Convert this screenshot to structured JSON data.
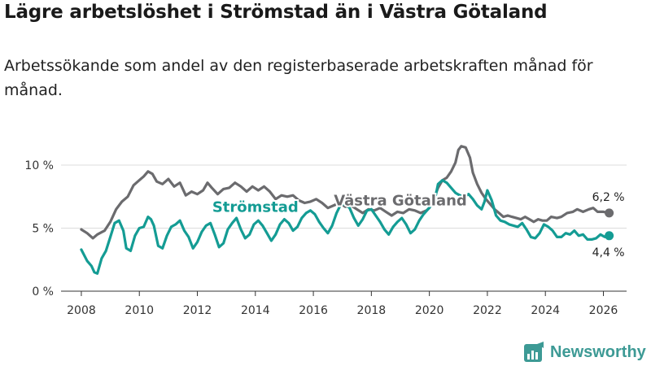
{
  "title": "Lägre arbetslöshet i Strömstad än i Västra Götaland",
  "subtitle": "Arbetssökande som andel av den registerbaserade arbetskraften månad för månad.",
  "brand": {
    "name": "Newsworthy"
  },
  "chart_data": {
    "type": "line",
    "title": "Lägre arbetslöshet i Strömstad än i Västra Götaland",
    "xlabel": "",
    "ylabel": "",
    "xlim": [
      2007.3,
      2026.8
    ],
    "ylim": [
      0,
      12
    ],
    "yticks": [
      0,
      5,
      10
    ],
    "ytick_labels": [
      "0 %",
      "5 %",
      "10 %"
    ],
    "xticks": [
      2008,
      2010,
      2012,
      2014,
      2016,
      2018,
      2020,
      2022,
      2024,
      2026
    ],
    "xtick_labels": [
      "2008",
      "2010",
      "2012",
      "2014",
      "2016",
      "2018",
      "2020",
      "2022",
      "2024",
      "2026"
    ],
    "grid": true,
    "series": [
      {
        "name": "Västra Götaland",
        "color": "#6b6b6e",
        "end_label": "6,2 %",
        "points": [
          [
            2008.0,
            4.9
          ],
          [
            2008.2,
            4.6
          ],
          [
            2008.4,
            4.2
          ],
          [
            2008.55,
            4.5
          ],
          [
            2008.8,
            4.8
          ],
          [
            2009.0,
            5.5
          ],
          [
            2009.2,
            6.5
          ],
          [
            2009.4,
            7.1
          ],
          [
            2009.6,
            7.5
          ],
          [
            2009.8,
            8.4
          ],
          [
            2010.0,
            8.8
          ],
          [
            2010.15,
            9.1
          ],
          [
            2010.3,
            9.5
          ],
          [
            2010.45,
            9.3
          ],
          [
            2010.6,
            8.7
          ],
          [
            2010.8,
            8.5
          ],
          [
            2011.0,
            8.9
          ],
          [
            2011.2,
            8.3
          ],
          [
            2011.4,
            8.6
          ],
          [
            2011.6,
            7.6
          ],
          [
            2011.8,
            7.9
          ],
          [
            2012.0,
            7.7
          ],
          [
            2012.2,
            8.0
          ],
          [
            2012.35,
            8.6
          ],
          [
            2012.5,
            8.2
          ],
          [
            2012.7,
            7.7
          ],
          [
            2012.9,
            8.1
          ],
          [
            2013.1,
            8.2
          ],
          [
            2013.3,
            8.6
          ],
          [
            2013.5,
            8.3
          ],
          [
            2013.7,
            7.9
          ],
          [
            2013.9,
            8.3
          ],
          [
            2014.1,
            8.0
          ],
          [
            2014.3,
            8.3
          ],
          [
            2014.5,
            7.9
          ],
          [
            2014.7,
            7.3
          ],
          [
            2014.9,
            7.6
          ],
          [
            2015.1,
            7.5
          ],
          [
            2015.3,
            7.6
          ],
          [
            2015.5,
            7.2
          ],
          [
            2015.7,
            7.0
          ],
          [
            2015.9,
            7.1
          ],
          [
            2016.1,
            7.3
          ],
          [
            2016.3,
            7.0
          ],
          [
            2016.5,
            6.6
          ],
          [
            2016.7,
            6.8
          ],
          [
            2016.9,
            7.0
          ],
          [
            2017.1,
            6.7
          ],
          [
            2017.3,
            6.8
          ],
          [
            2017.5,
            6.5
          ],
          [
            2017.7,
            6.2
          ],
          [
            2017.9,
            6.5
          ],
          [
            2018.1,
            6.4
          ],
          [
            2018.3,
            6.6
          ],
          [
            2018.5,
            6.3
          ],
          [
            2018.7,
            6.0
          ],
          [
            2018.9,
            6.3
          ],
          [
            2019.1,
            6.2
          ],
          [
            2019.3,
            6.5
          ],
          [
            2019.5,
            6.4
          ],
          [
            2019.7,
            6.2
          ],
          [
            2019.9,
            6.4
          ],
          [
            2020.0,
            6.6
          ],
          [
            2020.15,
            7.3
          ],
          [
            2020.3,
            8.2
          ],
          [
            2020.45,
            8.8
          ],
          [
            2020.6,
            9.0
          ],
          [
            2020.75,
            9.5
          ],
          [
            2020.9,
            10.2
          ],
          [
            2021.0,
            11.2
          ],
          [
            2021.1,
            11.5
          ],
          [
            2021.25,
            11.4
          ],
          [
            2021.4,
            10.6
          ],
          [
            2021.5,
            9.4
          ],
          [
            2021.65,
            8.5
          ],
          [
            2021.8,
            7.8
          ],
          [
            2021.95,
            7.3
          ],
          [
            2022.1,
            6.9
          ],
          [
            2022.25,
            6.5
          ],
          [
            2022.4,
            6.2
          ],
          [
            2022.55,
            5.9
          ],
          [
            2022.7,
            6.0
          ],
          [
            2022.85,
            5.9
          ],
          [
            2023.0,
            5.8
          ],
          [
            2023.15,
            5.7
          ],
          [
            2023.3,
            5.9
          ],
          [
            2023.45,
            5.7
          ],
          [
            2023.6,
            5.5
          ],
          [
            2023.75,
            5.7
          ],
          [
            2023.9,
            5.6
          ],
          [
            2024.05,
            5.6
          ],
          [
            2024.2,
            5.9
          ],
          [
            2024.4,
            5.8
          ],
          [
            2024.55,
            5.9
          ],
          [
            2024.75,
            6.2
          ],
          [
            2024.95,
            6.3
          ],
          [
            2025.1,
            6.5
          ],
          [
            2025.3,
            6.3
          ],
          [
            2025.5,
            6.5
          ],
          [
            2025.65,
            6.6
          ],
          [
            2025.8,
            6.3
          ],
          [
            2026.0,
            6.3
          ],
          [
            2026.2,
            6.2
          ]
        ]
      },
      {
        "name": "Strömstad",
        "color": "#149c94",
        "end_label": "4,4 %",
        "points": [
          [
            2008.0,
            3.3
          ],
          [
            2008.2,
            2.4
          ],
          [
            2008.35,
            2.0
          ],
          [
            2008.45,
            1.5
          ],
          [
            2008.55,
            1.4
          ],
          [
            2008.7,
            2.6
          ],
          [
            2008.85,
            3.2
          ],
          [
            2009.0,
            4.3
          ],
          [
            2009.15,
            5.4
          ],
          [
            2009.3,
            5.6
          ],
          [
            2009.45,
            4.8
          ],
          [
            2009.55,
            3.4
          ],
          [
            2009.7,
            3.2
          ],
          [
            2009.85,
            4.4
          ],
          [
            2010.0,
            5.0
          ],
          [
            2010.15,
            5.1
          ],
          [
            2010.3,
            5.9
          ],
          [
            2010.4,
            5.7
          ],
          [
            2010.5,
            5.2
          ],
          [
            2010.65,
            3.6
          ],
          [
            2010.8,
            3.4
          ],
          [
            2010.95,
            4.4
          ],
          [
            2011.1,
            5.1
          ],
          [
            2011.25,
            5.3
          ],
          [
            2011.4,
            5.6
          ],
          [
            2011.55,
            4.8
          ],
          [
            2011.7,
            4.3
          ],
          [
            2011.85,
            3.4
          ],
          [
            2012.0,
            3.9
          ],
          [
            2012.15,
            4.7
          ],
          [
            2012.3,
            5.2
          ],
          [
            2012.45,
            5.4
          ],
          [
            2012.6,
            4.5
          ],
          [
            2012.75,
            3.5
          ],
          [
            2012.9,
            3.8
          ],
          [
            2013.05,
            4.9
          ],
          [
            2013.2,
            5.4
          ],
          [
            2013.35,
            5.8
          ],
          [
            2013.5,
            4.9
          ],
          [
            2013.65,
            4.2
          ],
          [
            2013.8,
            4.5
          ],
          [
            2013.95,
            5.3
          ],
          [
            2014.1,
            5.6
          ],
          [
            2014.25,
            5.2
          ],
          [
            2014.4,
            4.6
          ],
          [
            2014.55,
            4.0
          ],
          [
            2014.7,
            4.5
          ],
          [
            2014.85,
            5.3
          ],
          [
            2015.0,
            5.7
          ],
          [
            2015.15,
            5.4
          ],
          [
            2015.3,
            4.8
          ],
          [
            2015.45,
            5.1
          ],
          [
            2015.6,
            5.8
          ],
          [
            2015.75,
            6.2
          ],
          [
            2015.9,
            6.4
          ],
          [
            2016.05,
            6.1
          ],
          [
            2016.2,
            5.5
          ],
          [
            2016.35,
            5.0
          ],
          [
            2016.5,
            4.6
          ],
          [
            2016.65,
            5.2
          ],
          [
            2016.8,
            6.2
          ],
          [
            2016.95,
            6.9
          ],
          [
            2017.1,
            6.9
          ],
          [
            2017.25,
            6.6
          ],
          [
            2017.4,
            5.8
          ],
          [
            2017.55,
            5.2
          ],
          [
            2017.7,
            5.7
          ],
          [
            2017.85,
            6.4
          ],
          [
            2018.0,
            6.5
          ],
          [
            2018.15,
            6.0
          ],
          [
            2018.3,
            5.5
          ],
          [
            2018.45,
            4.9
          ],
          [
            2018.6,
            4.5
          ],
          [
            2018.75,
            5.1
          ],
          [
            2018.9,
            5.5
          ],
          [
            2019.05,
            5.8
          ],
          [
            2019.2,
            5.3
          ],
          [
            2019.35,
            4.6
          ],
          [
            2019.5,
            4.9
          ],
          [
            2019.65,
            5.6
          ],
          [
            2019.8,
            6.1
          ],
          [
            2019.95,
            6.5
          ],
          [
            2020.1,
            6.9
          ],
          [
            2020.2,
            7.4
          ],
          [
            2020.3,
            8.5
          ],
          [
            2020.45,
            8.8
          ],
          [
            2020.6,
            8.6
          ],
          [
            2020.75,
            8.2
          ],
          [
            2020.9,
            7.8
          ],
          [
            2021.05,
            7.6
          ],
          [
            2021.2,
            7.5
          ],
          [
            2021.35,
            7.7
          ],
          [
            2021.5,
            7.3
          ],
          [
            2021.65,
            6.8
          ],
          [
            2021.8,
            6.5
          ],
          [
            2021.9,
            7.1
          ],
          [
            2022.0,
            8.0
          ],
          [
            2022.15,
            7.2
          ],
          [
            2022.3,
            6.0
          ],
          [
            2022.45,
            5.6
          ],
          [
            2022.6,
            5.5
          ],
          [
            2022.75,
            5.3
          ],
          [
            2022.9,
            5.2
          ],
          [
            2023.05,
            5.1
          ],
          [
            2023.2,
            5.4
          ],
          [
            2023.35,
            4.9
          ],
          [
            2023.5,
            4.3
          ],
          [
            2023.65,
            4.2
          ],
          [
            2023.8,
            4.6
          ],
          [
            2023.95,
            5.3
          ],
          [
            2024.1,
            5.1
          ],
          [
            2024.25,
            4.8
          ],
          [
            2024.4,
            4.3
          ],
          [
            2024.55,
            4.3
          ],
          [
            2024.7,
            4.6
          ],
          [
            2024.85,
            4.5
          ],
          [
            2025.0,
            4.8
          ],
          [
            2025.15,
            4.4
          ],
          [
            2025.3,
            4.5
          ],
          [
            2025.45,
            4.1
          ],
          [
            2025.6,
            4.1
          ],
          [
            2025.75,
            4.2
          ],
          [
            2025.9,
            4.5
          ],
          [
            2026.05,
            4.3
          ],
          [
            2026.2,
            4.4
          ]
        ]
      }
    ],
    "annotations": [
      {
        "series": "Strömstad",
        "text": "Strömstad",
        "x": 2014.0,
        "y": 6.3,
        "color": "#149c94"
      },
      {
        "series": "Västra Götaland",
        "text": "Västra Götaland",
        "x": 2019.0,
        "y": 6.8,
        "color": "#6b6b6e"
      }
    ]
  }
}
